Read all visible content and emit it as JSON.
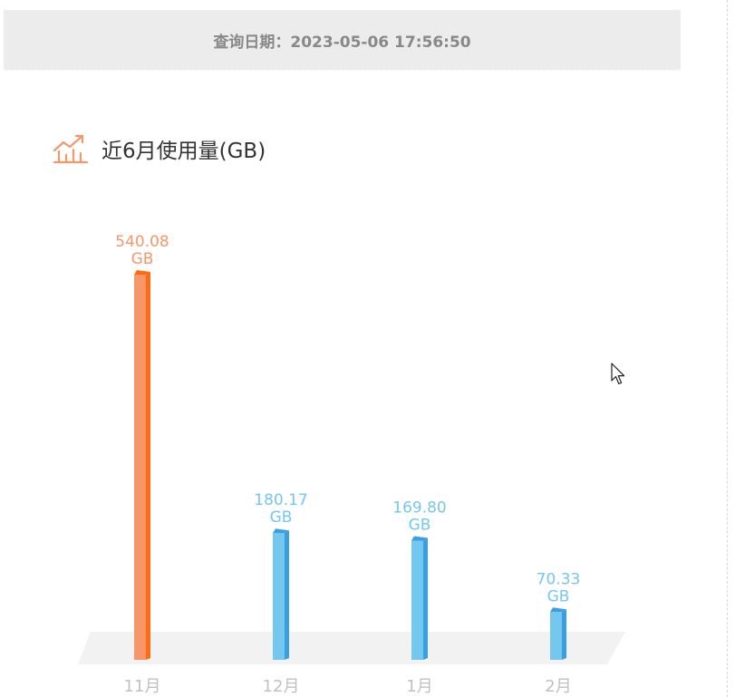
{
  "header": {
    "query_date_label": "查询日期：2023-05-06 17:56:50"
  },
  "section": {
    "title": "近6月使用量(GB)",
    "icon": "chart-trend-icon"
  },
  "colors": {
    "highlight_front": "#f6976b",
    "highlight_side": "#ff6a13",
    "highlight_label": "#f6976b",
    "normal_front": "#74c7ef",
    "normal_side": "#3a9fe0",
    "normal_label": "#74c7ef",
    "floor": "#f2f2f2",
    "axis_text": "#c0c0c0"
  },
  "chart_data": {
    "type": "bar",
    "title": "近6月使用量(GB)",
    "unit": "GB",
    "categories": [
      "11月",
      "12月",
      "1月",
      "2月"
    ],
    "values": [
      540.08,
      180.17,
      169.8,
      70.33
    ],
    "value_labels": [
      "540.08",
      "180.17",
      "169.80",
      "70.33"
    ],
    "highlight_index": 0,
    "ylim": [
      0,
      540.08
    ],
    "grid": false,
    "legend": "none"
  }
}
